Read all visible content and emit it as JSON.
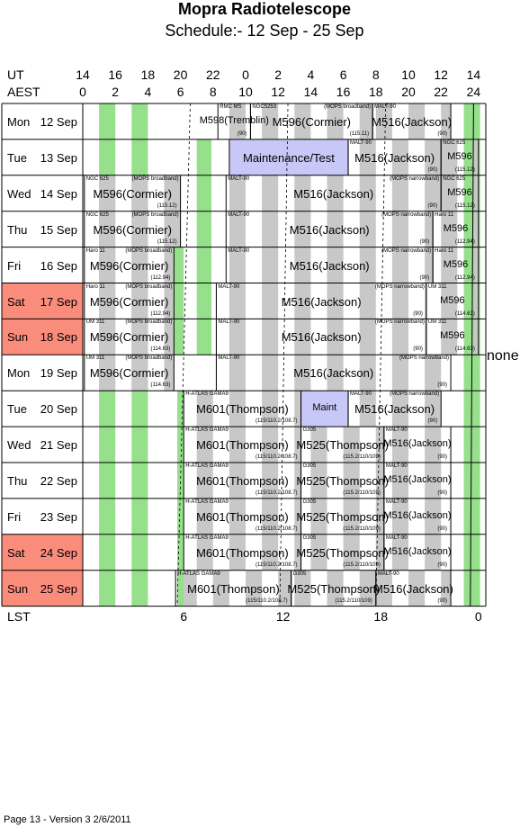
{
  "title": "Mopra Radiotelescope",
  "subtitle": "Schedule:- 12 Sep - 25 Sep",
  "ut_label": "UT",
  "aest_label": "AEST",
  "lst_label": "LST",
  "ut_ticks": [
    "14",
    "16",
    "18",
    "20",
    "22",
    "0",
    "2",
    "4",
    "6",
    "8",
    "10",
    "12",
    "14"
  ],
  "aest_ticks": [
    "0",
    "2",
    "4",
    "6",
    "8",
    "10",
    "12",
    "14",
    "16",
    "18",
    "20",
    "22",
    "24"
  ],
  "lst_ticks": [
    "6",
    "12",
    "18",
    "0"
  ],
  "none_label": "none",
  "footer": "Page 13 - Version 3  2/6/2011",
  "colors": {
    "weekend": "#fa8c7c",
    "green": "#96e08c",
    "grey": "#c8c8c8",
    "maint": "#c8c8f8"
  },
  "days": [
    {
      "day": "Mon",
      "date": "12 Sep",
      "weekend": false
    },
    {
      "day": "Tue",
      "date": "13 Sep",
      "weekend": false
    },
    {
      "day": "Wed",
      "date": "14 Sep",
      "weekend": false
    },
    {
      "day": "Thu",
      "date": "15 Sep",
      "weekend": false
    },
    {
      "day": "Fri",
      "date": "16 Sep",
      "weekend": false
    },
    {
      "day": "Sat",
      "date": "17 Sep",
      "weekend": true
    },
    {
      "day": "Sun",
      "date": "18 Sep",
      "weekend": true
    },
    {
      "day": "Mon",
      "date": "19 Sep",
      "weekend": false
    },
    {
      "day": "Tue",
      "date": "20 Sep",
      "weekend": false
    },
    {
      "day": "Wed",
      "date": "21 Sep",
      "weekend": false
    },
    {
      "day": "Thu",
      "date": "22 Sep",
      "weekend": false
    },
    {
      "day": "Fri",
      "date": "23 Sep",
      "weekend": false
    },
    {
      "day": "Sat",
      "date": "24 Sep",
      "weekend": true
    },
    {
      "day": "Sun",
      "date": "25 Sep",
      "weekend": true
    }
  ],
  "rows": [
    [
      {
        "from": 8.3,
        "to": 10.3,
        "project": "M598(Tremblin)",
        "source": "RMC MS",
        "note": "(90)"
      },
      {
        "from": 10.3,
        "to": 17.8,
        "project": "M596(Cormier)",
        "source": "NGC5253",
        "mode": "(MOPS broadband)",
        "note": "(115.11)"
      },
      {
        "from": 17.8,
        "to": 22.6,
        "project": "M516(Jackson)",
        "source": "MALT-90",
        "note": "(90)"
      }
    ],
    [
      {
        "from": 9,
        "to": 16.3,
        "project": "Maintenance/Test",
        "maint": true
      },
      {
        "from": 16.3,
        "to": 22,
        "project": "M516(Jackson)",
        "source": "MALT-90",
        "note": "(90)"
      },
      {
        "from": 22,
        "to": 24.3,
        "project": "M596",
        "source": "NGC 625",
        "note": "(115.12)"
      }
    ],
    [
      {
        "from": 0.1,
        "to": 6,
        "project": "M596(Cormier)",
        "source": "NGC 625",
        "mode": "(MOPS broadband)",
        "note": "(115.12)"
      },
      {
        "from": 8.8,
        "to": 22,
        "project": "M516(Jackson)",
        "source": "MALT-90",
        "mode": "(MOPS narrowband)",
        "note": "(90)"
      },
      {
        "from": 22,
        "to": 24.3,
        "project": "M596",
        "source": "NGC 625",
        "note": "(115.12)"
      }
    ],
    [
      {
        "from": 0.1,
        "to": 6,
        "project": "M596(Cormier)",
        "source": "NGC 625",
        "mode": "(MOPS broadband)",
        "note": "(115.12)"
      },
      {
        "from": 8.8,
        "to": 21.5,
        "project": "M516(Jackson)",
        "source": "MALT-90",
        "mode": "(MOPS narrowband)",
        "note": "(90)"
      },
      {
        "from": 21.5,
        "to": 24.3,
        "project": "M596",
        "source": "Haro 11",
        "note": "(112.94)"
      }
    ],
    [
      {
        "from": 0.1,
        "to": 5.6,
        "project": "M596(Cormier)",
        "source": "Haro 11",
        "mode": "(MOPS broadband)",
        "note": "(112.94)"
      },
      {
        "from": 8.8,
        "to": 21.5,
        "project": "M516(Jackson)",
        "source": "MALT-90",
        "mode": "(MOPS narrowband)",
        "note": "(90)"
      },
      {
        "from": 21.5,
        "to": 24.3,
        "project": "M596",
        "source": "Haro 11",
        "note": "(112.94)"
      }
    ],
    [
      {
        "from": 0.1,
        "to": 5.6,
        "project": "M596(Cormier)",
        "source": "Haro 11",
        "mode": "(MOPS broadband)",
        "note": "(112.94)"
      },
      {
        "from": 8.2,
        "to": 21.1,
        "project": "M516(Jackson)",
        "source": "MALT-90",
        "mode": "(MOPS narrowband)",
        "note": "(90)"
      },
      {
        "from": 21.1,
        "to": 24.3,
        "project": "M596",
        "source": "UM 311",
        "note": "(114.63)"
      }
    ],
    [
      {
        "from": 0.1,
        "to": 5.6,
        "project": "M596(Cormier)",
        "source": "UM 311",
        "mode": "(MOPS broadband)",
        "note": "(114.63)"
      },
      {
        "from": 8.2,
        "to": 21.1,
        "project": "M516(Jackson)",
        "source": "MALT-90",
        "mode": "(MOPS narrowband)",
        "note": "(90)"
      },
      {
        "from": 21.1,
        "to": 24.3,
        "project": "M596",
        "source": "UM 311",
        "note": "(114.63)"
      }
    ],
    [
      {
        "from": 0.1,
        "to": 5.6,
        "project": "M596(Cormier)",
        "source": "UM 311",
        "mode": "(MOPS broadband)",
        "note": "(114.63)"
      },
      {
        "from": 8.2,
        "to": 22.6,
        "project": "M516(Jackson)",
        "source": "MALT-90",
        "mode": "(MOPS narrowband)",
        "note": "(90)"
      }
    ],
    [
      {
        "from": 6.2,
        "to": 13.4,
        "project": "M601(Thompson)",
        "source": "H-ATLAS GAMA9",
        "note": "(115/110.2/108.7)"
      },
      {
        "from": 13.4,
        "to": 16.3,
        "project": "Maint",
        "maint": true
      },
      {
        "from": 16.3,
        "to": 22,
        "project": "M516(Jackson)",
        "source": "MALT-90",
        "mode": "(MOPS narrowband)",
        "note": "(90)"
      }
    ],
    [
      {
        "from": 6.2,
        "to": 13.4,
        "project": "M601(Thompson)",
        "source": "H-ATLAS GAMA9",
        "note": "(115/110.2/108.7)"
      },
      {
        "from": 13.4,
        "to": 18.5,
        "project": "M525(Thompson)",
        "source": "G305",
        "note": "(115.2/110/109)"
      },
      {
        "from": 18.5,
        "to": 22.6,
        "project": "M516(Jackson)",
        "source": "MALT-90",
        "note": "(90)"
      }
    ],
    [
      {
        "from": 6.2,
        "to": 13.4,
        "project": "M601(Thompson)",
        "source": "H-ATLAS GAMA9",
        "note": "(115/110.2/108.7)"
      },
      {
        "from": 13.4,
        "to": 18.5,
        "project": "M525(Thompson)",
        "source": "G305",
        "note": "(115.2/110/109)"
      },
      {
        "from": 18.5,
        "to": 22.6,
        "project": "M516(Jackson)",
        "source": "MALT-90",
        "note": "(90)"
      }
    ],
    [
      {
        "from": 6.2,
        "to": 13.4,
        "project": "M601(Thompson)",
        "source": "H-ATLAS GAMA9",
        "note": "(115/110.2/108.7)"
      },
      {
        "from": 13.4,
        "to": 18.5,
        "project": "M525(Thompson)",
        "source": "G305",
        "note": "(115.2/110/109)"
      },
      {
        "from": 18.5,
        "to": 22.6,
        "project": "M516(Jackson)",
        "source": "MALT-90",
        "note": "(90)"
      }
    ],
    [
      {
        "from": 6.2,
        "to": 13.4,
        "project": "M601(Thompson)",
        "source": "H-ATLAS GAMA9",
        "note": "(115/110.2/108.7)"
      },
      {
        "from": 13.4,
        "to": 18.5,
        "project": "M525(Thompson)",
        "source": "G305",
        "note": "(115.2/110/109)"
      },
      {
        "from": 18.5,
        "to": 22.6,
        "project": "M516(Jackson)",
        "source": "MALT-90",
        "note": "(90)"
      }
    ],
    [
      {
        "from": 5.7,
        "to": 12.8,
        "project": "M601(Thompson)",
        "source": "H-ATLAS GAMA9",
        "note": "(115/110.2/108.7)"
      },
      {
        "from": 12.8,
        "to": 18,
        "project": "M525(Thompson)",
        "source": "G305",
        "note": "(115.2/110/109)"
      },
      {
        "from": 18,
        "to": 22.6,
        "project": "M516(Jackson)",
        "source": "MALT-90",
        "note": "(90)"
      }
    ]
  ]
}
